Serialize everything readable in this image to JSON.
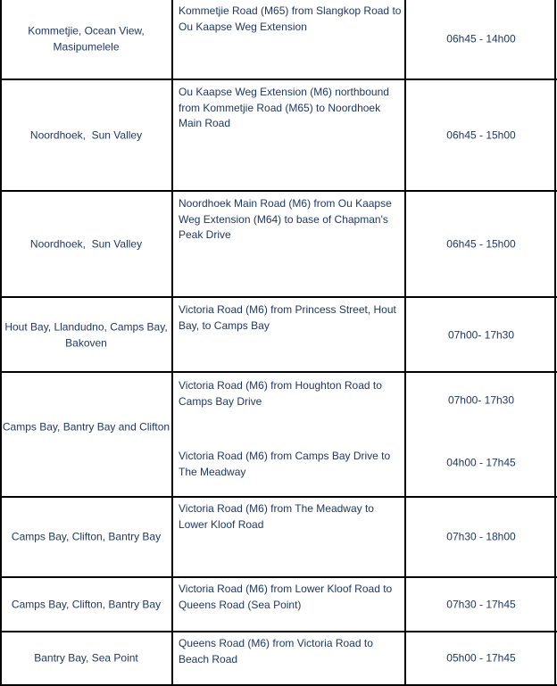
{
  "table": {
    "rows": [
      {
        "area": "Kommetjie, Ocean View, Masipumelele",
        "entries": [
          {
            "road": "Kommetjie Road (M65) from Slangkop Road to Ou Kaapse Weg Extension",
            "time": "06h45 - 14h00"
          }
        ]
      },
      {
        "area": "Noordhoek,  Sun Valley",
        "entries": [
          {
            "road": "Ou Kaapse Weg Extension (M6) northbound from Kommetjie Road (M65) to Noordhoek Main Road",
            "time": "06h45 - 15h00"
          }
        ]
      },
      {
        "area": "Noordhoek,  Sun Valley",
        "entries": [
          {
            "road": "Noordhoek Main Road (M6) from Ou Kaapse Weg Extension (M64) to base of Chapman's Peak Drive",
            "time": "06h45 - 15h00"
          }
        ]
      },
      {
        "area": "Hout Bay, Llandudno, Camps Bay, Bakoven",
        "entries": [
          {
            "road": "Victoria Road (M6) from Princess Street, Hout Bay, to Camps Bay",
            "time": "07h00- 17h30"
          }
        ]
      },
      {
        "area": "Camps Bay, Bantry Bay and Clifton",
        "entries": [
          {
            "road": "Victoria Road (M6) from Houghton Road to Camps Bay Drive",
            "time": "07h00- 17h30"
          },
          {
            "road": "Victoria Road (M6) from Camps Bay Drive to The Meadway",
            "time": "04h00 - 17h45"
          }
        ]
      },
      {
        "area": "Camps Bay, Clifton, Bantry Bay",
        "entries": [
          {
            "road": "Victoria Road (M6) from The Meadway to Lower Kloof Road",
            "time": "07h30 - 18h00"
          }
        ]
      },
      {
        "area": "Camps Bay, Clifton, Bantry Bay",
        "entries": [
          {
            "road": "Victoria Road (M6) from Lower Kloof Road to Queens Road (Sea Point)",
            "time": "07h30 - 17h45"
          }
        ]
      },
      {
        "area": "Bantry Bay, Sea Point",
        "entries": [
          {
            "road": "Queens Road (M6) from Victoria Road to Beach Road",
            "time": "05h00 - 17h45"
          }
        ]
      }
    ]
  }
}
